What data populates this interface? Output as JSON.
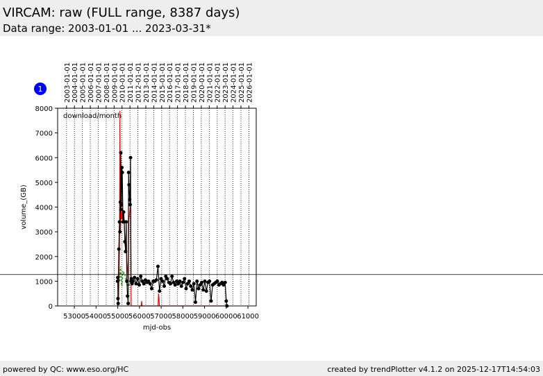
{
  "header": {
    "title": "VIRCAM: raw (FULL range, 8387 days)",
    "subtitle": "Data range: 2003-01-01 ... 2023-03-31*"
  },
  "footer": {
    "left": "powered by QC: www.eso.org/HC",
    "right": "created by trendPlotter v4.1.2 on 2025-12-17T14:54:03"
  },
  "badge": "1",
  "chart_data": {
    "type": "line",
    "annotation": "download/month",
    "xlabel": "mjd-obs",
    "ylabel": "volume_(GB)",
    "xlim": [
      52230,
      61380
    ],
    "ylim": [
      0,
      8000
    ],
    "xticks": [
      53000,
      54000,
      55000,
      56000,
      57000,
      58000,
      59000,
      60000,
      61000
    ],
    "yticks": [
      0,
      1000,
      2000,
      3000,
      4000,
      5000,
      6000,
      7000,
      8000
    ],
    "x2ticks": [
      {
        "value": 52640,
        "label": "2003-01-01"
      },
      {
        "value": 53005,
        "label": "2004-01-01"
      },
      {
        "value": 53371,
        "label": "2005-01-01"
      },
      {
        "value": 53736,
        "label": "2006-01-01"
      },
      {
        "value": 54101,
        "label": "2007-01-01"
      },
      {
        "value": 54466,
        "label": "2008-01-01"
      },
      {
        "value": 54832,
        "label": "2009-01-01"
      },
      {
        "value": 55197,
        "label": "2010-01-01"
      },
      {
        "value": 55562,
        "label": "2011-01-01"
      },
      {
        "value": 55927,
        "label": "2012-01-01"
      },
      {
        "value": 56293,
        "label": "2013-01-01"
      },
      {
        "value": 56658,
        "label": "2014-01-01"
      },
      {
        "value": 57023,
        "label": "2015-01-01"
      },
      {
        "value": 57388,
        "label": "2016-01-01"
      },
      {
        "value": 57754,
        "label": "2017-01-01"
      },
      {
        "value": 58119,
        "label": "2018-01-01"
      },
      {
        "value": 58484,
        "label": "2019-01-01"
      },
      {
        "value": 58849,
        "label": "2020-01-01"
      },
      {
        "value": 59215,
        "label": "2021-01-01"
      },
      {
        "value": 59580,
        "label": "2022-01-01"
      },
      {
        "value": 59945,
        "label": "2023-01-01"
      },
      {
        "value": 60310,
        "label": "2024-01-01"
      },
      {
        "value": 60676,
        "label": "2025-01-01"
      },
      {
        "value": 61041,
        "label": "2026-01-01"
      }
    ],
    "hline": 1270,
    "series": [
      {
        "color": "#ff0000",
        "style": "solid",
        "markers": false,
        "x": [
          55000,
          55040,
          55080,
          55100,
          55120,
          55150,
          55180,
          55210,
          55240,
          55270,
          55300,
          55330,
          55360,
          55390,
          55420,
          55450,
          55480,
          55510,
          55540,
          55570,
          55600,
          55620,
          55640,
          56080,
          56100,
          56120,
          56860,
          56880,
          56900,
          56920,
          60000
        ],
        "values": [
          0,
          300,
          2300,
          7900,
          3000,
          3900,
          3500,
          3800,
          3400,
          3700,
          3300,
          2500,
          2400,
          2700,
          1800,
          1500,
          1000,
          3500,
          3700,
          4000,
          3800,
          0,
          0,
          0,
          200,
          0,
          0,
          500,
          300,
          0,
          0
        ]
      },
      {
        "color": "#008000",
        "style": "dashed",
        "markers": false,
        "x": [
          55090,
          55110,
          55130,
          55150,
          55170,
          55200,
          55230,
          55260,
          55290,
          55320,
          55350,
          55380,
          55410,
          55440,
          55470,
          55500,
          55530,
          55560,
          55590
        ],
        "values": [
          1000,
          1400,
          1600,
          1200,
          900,
          800,
          1400,
          1300,
          1350,
          1300,
          1200,
          1000,
          900,
          900,
          800,
          800,
          850,
          1000,
          1100
        ]
      },
      {
        "color": "#000000",
        "style": "solid",
        "markers": true,
        "x": [
          54990,
          55000,
          55010,
          55020,
          55050,
          55080,
          55100,
          55120,
          55140,
          55150,
          55170,
          55190,
          55210,
          55240,
          55270,
          55300,
          55330,
          55360,
          55390,
          55420,
          55450,
          55480,
          55500,
          55520,
          55550,
          55570,
          55590,
          55610,
          55630,
          55660,
          55700,
          55772,
          55844,
          55916,
          55988,
          56060,
          56132,
          56204,
          56276,
          56348,
          56420,
          56492,
          56564,
          56636,
          56708,
          56780,
          56852,
          56924,
          56996,
          57068,
          57140,
          57212,
          57284,
          57356,
          57428,
          57500,
          57572,
          57644,
          57716,
          57788,
          57860,
          57932,
          58004,
          58076,
          58148,
          58220,
          58292,
          58364,
          58436,
          58508,
          58580,
          58652,
          58724,
          58796,
          58868,
          58940,
          59012,
          59084,
          59156,
          59228,
          59300,
          59372,
          59444,
          59516,
          59588,
          59660,
          59732,
          59804,
          59876,
          59948,
          60000,
          60030
        ],
        "values": [
          1000,
          1150,
          300,
          100,
          2300,
          3400,
          3000,
          4200,
          6200,
          3900,
          4100,
          5600,
          5400,
          3400,
          3800,
          3400,
          2600,
          2200,
          3400,
          1000,
          400,
          100,
          5400,
          4900,
          4300,
          4100,
          6000,
          1000,
          1100,
          900,
          1000,
          1150,
          900,
          1100,
          850,
          1200,
          1000,
          900,
          1050,
          950,
          1000,
          900,
          700,
          1000,
          1000,
          1050,
          1600,
          600,
          1100,
          1000,
          800,
          1200,
          1100,
          950,
          900,
          1200,
          950,
          850,
          1000,
          900,
          1000,
          800,
          950,
          1100,
          700,
          900,
          1000,
          800,
          650,
          900,
          150,
          1000,
          700,
          850,
          950,
          650,
          1000,
          600,
          950,
          1000,
          200,
          850,
          900,
          950,
          1000,
          850,
          900,
          950,
          850,
          950,
          200,
          0
        ]
      }
    ]
  }
}
